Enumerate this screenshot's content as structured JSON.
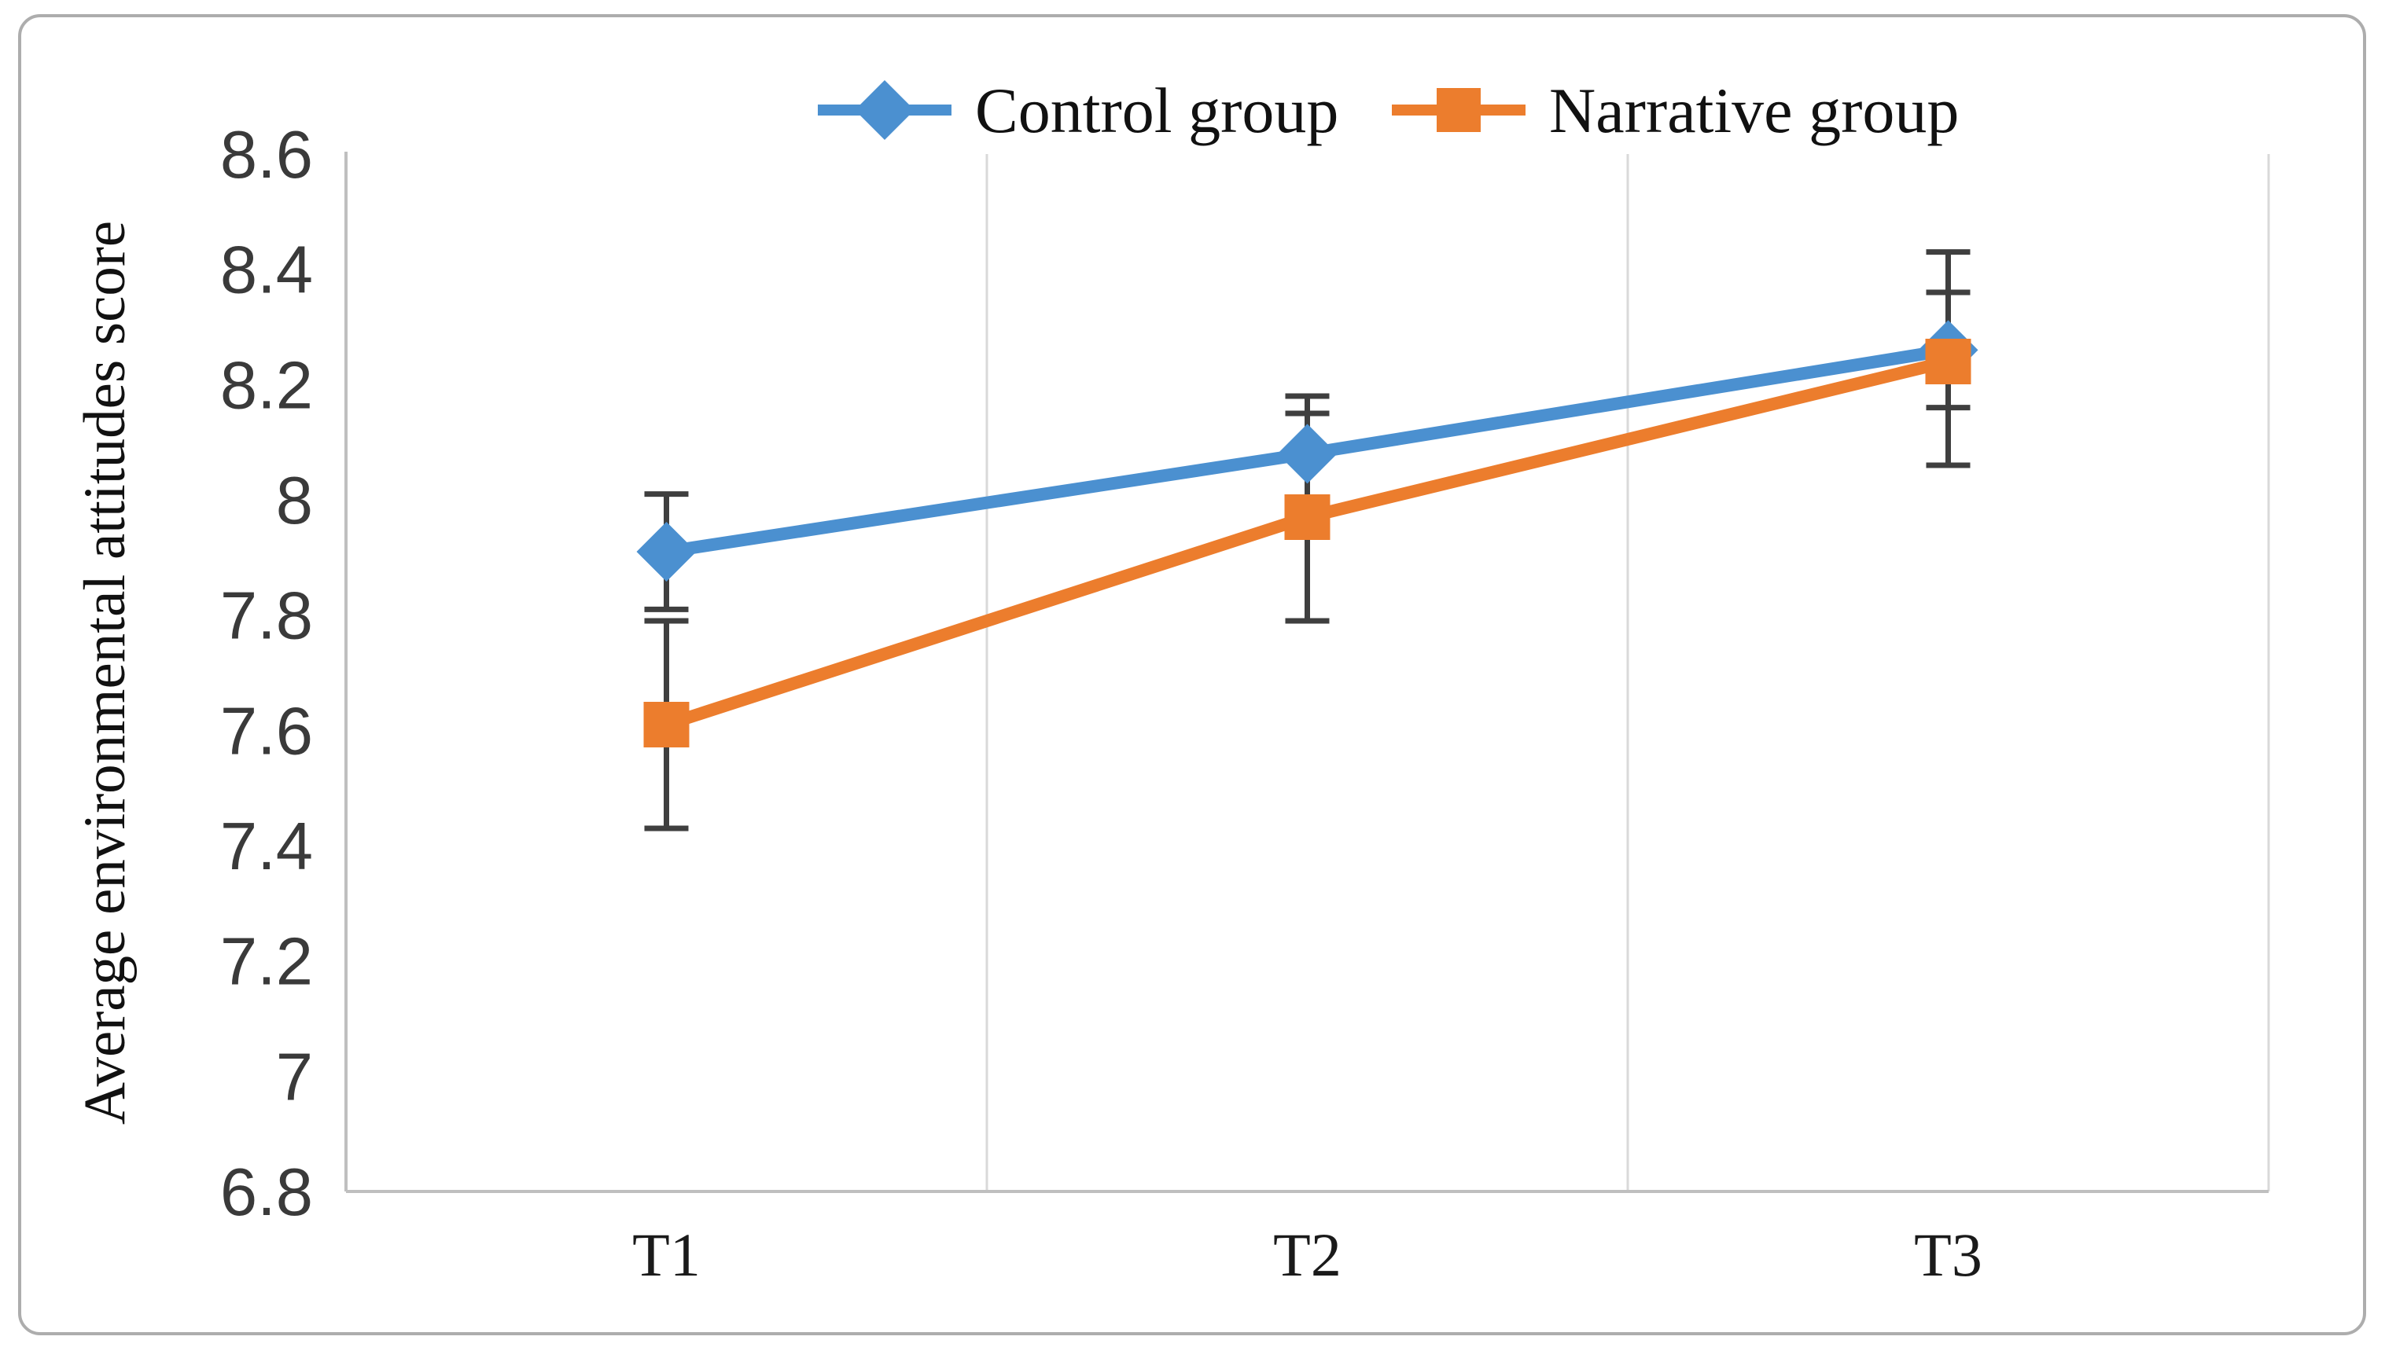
{
  "figure": {
    "background": "#ffffff",
    "border_color": "#adadad"
  },
  "legend": {
    "position": "top-center",
    "items": [
      {
        "label": "Control group",
        "marker": "diamond",
        "color": "#4B90D0"
      },
      {
        "label": "Narrative group",
        "marker": "square",
        "color": "#EC7D2D"
      }
    ]
  },
  "y_axis": {
    "title": "Average environmental attitudes score",
    "tick_labels": [
      "8.6",
      "8.4",
      "8.2",
      "8",
      "7.8",
      "7.6",
      "7.4",
      "7.2",
      "7",
      "6.8"
    ],
    "tick_values": [
      8.6,
      8.4,
      8.2,
      8.0,
      7.8,
      7.6,
      7.4,
      7.2,
      7.0,
      6.8
    ]
  },
  "x_axis": {
    "categories": [
      "T1",
      "T2",
      "T3"
    ]
  },
  "chart_data": {
    "type": "line",
    "title": "",
    "xlabel": "",
    "ylabel": "Average environmental attitudes score",
    "categories": [
      "T1",
      "T2",
      "T3"
    ],
    "ylim": [
      6.8,
      8.6
    ],
    "ytick_step": 0.2,
    "grid": "vertical category separators only",
    "legend_position": "top-center",
    "error_bar_color": "#3F3F3F",
    "series": [
      {
        "name": "Control group",
        "color": "#4B90D0",
        "marker": "diamond",
        "values": [
          7.91,
          8.08,
          8.26
        ],
        "error_bars": [
          {
            "lo": 7.81,
            "hi": 8.01
          },
          {
            "lo": 7.98,
            "hi": 8.18
          },
          {
            "lo": 8.16,
            "hi": 8.43
          }
        ]
      },
      {
        "name": "Narrative group",
        "color": "#EC7D2D",
        "marker": "square",
        "values": [
          7.61,
          7.97,
          8.24
        ],
        "error_bars": [
          {
            "lo": 7.43,
            "hi": 7.79
          },
          {
            "lo": 7.79,
            "hi": 8.15
          },
          {
            "lo": 8.06,
            "hi": 8.36
          }
        ]
      }
    ]
  }
}
